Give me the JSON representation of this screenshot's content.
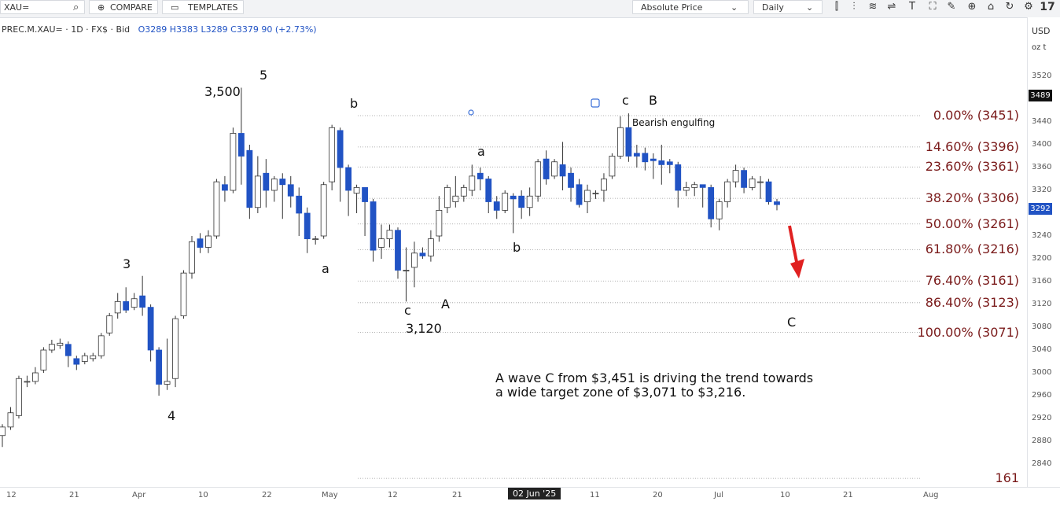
{
  "toolbar": {
    "symbol_input": "XAU=",
    "compare_label": "COMPARE",
    "templates_label": "TEMPLATES",
    "price_mode": "Absolute Price",
    "interval": "Daily",
    "icons": [
      "candles-icon",
      "bars-icon",
      "wave-icon",
      "indicator-icon",
      "text-icon",
      "shape-icon",
      "draw-icon",
      "zoom-icon",
      "undo-icon",
      "settings-icon",
      "tv-logo-icon"
    ]
  },
  "legend": {
    "instrument": "PREC.M.XAU= · 1D · FX$ · Bid",
    "o": "O3289",
    "h": "H3383",
    "l": "L3289",
    "c": "C3379",
    "chg": "90 (+2.73%)"
  },
  "axis": {
    "currency": "USD",
    "unit": "oz t",
    "last_price": "3292",
    "marker_price": "3489"
  },
  "chart_data": {
    "type": "candlestick",
    "ylim": [
      2840,
      3540
    ],
    "yticks": [
      3520,
      3480,
      3440,
      3400,
      3360,
      3320,
      3280,
      3240,
      3200,
      3160,
      3120,
      3080,
      3040,
      3000,
      2960,
      2920,
      2880,
      2840
    ],
    "xticks": [
      "12",
      "21",
      "Apr",
      "10",
      "22",
      "May",
      "12",
      "21",
      "02 Jun '25",
      "11",
      "20",
      "Jul",
      "10",
      "21",
      "Aug"
    ],
    "candles": [
      [
        2890,
        2905,
        2870,
        2910
      ],
      [
        2905,
        2930,
        2900,
        2940
      ],
      [
        2925,
        2990,
        2920,
        2995
      ],
      [
        2985,
        2985,
        2975,
        2995
      ],
      [
        2985,
        3000,
        2980,
        3010
      ],
      [
        3005,
        3040,
        3000,
        3045
      ],
      [
        3040,
        3050,
        3035,
        3058
      ],
      [
        3048,
        3052,
        3042,
        3060
      ],
      [
        3050,
        3030,
        3010,
        3055
      ],
      [
        3025,
        3015,
        3005,
        3030
      ],
      [
        3020,
        3030,
        3015,
        3035
      ],
      [
        3025,
        3030,
        3020,
        3035
      ],
      [
        3030,
        3065,
        3025,
        3070
      ],
      [
        3070,
        3100,
        3065,
        3105
      ],
      [
        3105,
        3125,
        3095,
        3140
      ],
      [
        3125,
        3110,
        3105,
        3150
      ],
      [
        3115,
        3130,
        3110,
        3140
      ],
      [
        3135,
        3115,
        3100,
        3170
      ],
      [
        3115,
        3040,
        3020,
        3120
      ],
      [
        3040,
        2980,
        2960,
        3045
      ],
      [
        2980,
        2985,
        2970,
        3060
      ],
      [
        2990,
        3095,
        2975,
        3100
      ],
      [
        3100,
        3175,
        3095,
        3180
      ],
      [
        3175,
        3230,
        3165,
        3240
      ],
      [
        3235,
        3220,
        3210,
        3245
      ],
      [
        3220,
        3240,
        3210,
        3250
      ],
      [
        3240,
        3335,
        3235,
        3340
      ],
      [
        3330,
        3320,
        3300,
        3345
      ],
      [
        3320,
        3420,
        3315,
        3430
      ],
      [
        3420,
        3380,
        3330,
        3500
      ],
      [
        3390,
        3290,
        3270,
        3400
      ],
      [
        3290,
        3345,
        3280,
        3380
      ],
      [
        3350,
        3320,
        3290,
        3375
      ],
      [
        3320,
        3340,
        3300,
        3345
      ],
      [
        3340,
        3330,
        3270,
        3350
      ],
      [
        3330,
        3310,
        3290,
        3345
      ],
      [
        3310,
        3280,
        3240,
        3325
      ],
      [
        3280,
        3235,
        3210,
        3290
      ],
      [
        3235,
        3235,
        3225,
        3240
      ],
      [
        3240,
        3330,
        3235,
        3335
      ],
      [
        3335,
        3430,
        3320,
        3435
      ],
      [
        3425,
        3360,
        3300,
        3430
      ],
      [
        3360,
        3320,
        3275,
        3365
      ],
      [
        3315,
        3325,
        3280,
        3330
      ],
      [
        3325,
        3300,
        3240,
        3325
      ],
      [
        3300,
        3215,
        3195,
        3305
      ],
      [
        3220,
        3235,
        3200,
        3260
      ],
      [
        3235,
        3250,
        3220,
        3260
      ],
      [
        3250,
        3180,
        3165,
        3255
      ],
      [
        3180,
        3180,
        3125,
        3220
      ],
      [
        3185,
        3210,
        3150,
        3230
      ],
      [
        3210,
        3205,
        3200,
        3220
      ],
      [
        3205,
        3235,
        3195,
        3250
      ],
      [
        3240,
        3285,
        3230,
        3310
      ],
      [
        3290,
        3325,
        3280,
        3330
      ],
      [
        3300,
        3310,
        3290,
        3345
      ],
      [
        3310,
        3325,
        3300,
        3330
      ],
      [
        3320,
        3345,
        3310,
        3365
      ],
      [
        3350,
        3340,
        3320,
        3360
      ],
      [
        3340,
        3300,
        3280,
        3345
      ],
      [
        3300,
        3285,
        3270,
        3310
      ],
      [
        3285,
        3315,
        3280,
        3320
      ],
      [
        3310,
        3305,
        3245,
        3315
      ],
      [
        3310,
        3290,
        3270,
        3320
      ],
      [
        3290,
        3310,
        3275,
        3325
      ],
      [
        3310,
        3370,
        3300,
        3375
      ],
      [
        3375,
        3340,
        3330,
        3390
      ],
      [
        3345,
        3370,
        3340,
        3375
      ],
      [
        3365,
        3345,
        3320,
        3405
      ],
      [
        3350,
        3325,
        3300,
        3360
      ],
      [
        3330,
        3295,
        3290,
        3340
      ],
      [
        3300,
        3320,
        3280,
        3330
      ],
      [
        3315,
        3315,
        3305,
        3320
      ],
      [
        3320,
        3340,
        3300,
        3350
      ],
      [
        3345,
        3380,
        3340,
        3385
      ],
      [
        3380,
        3430,
        3375,
        3450
      ],
      [
        3430,
        3380,
        3370,
        3455
      ],
      [
        3385,
        3380,
        3360,
        3400
      ],
      [
        3385,
        3370,
        3355,
        3395
      ],
      [
        3375,
        3372,
        3340,
        3385
      ],
      [
        3372,
        3365,
        3330,
        3400
      ],
      [
        3370,
        3365,
        3350,
        3375
      ],
      [
        3365,
        3320,
        3290,
        3370
      ],
      [
        3320,
        3325,
        3310,
        3335
      ],
      [
        3325,
        3330,
        3310,
        3335
      ],
      [
        3330,
        3325,
        3290,
        3330
      ],
      [
        3325,
        3270,
        3255,
        3330
      ],
      [
        3270,
        3300,
        3250,
        3305
      ],
      [
        3300,
        3335,
        3290,
        3340
      ],
      [
        3335,
        3355,
        3325,
        3365
      ],
      [
        3355,
        3325,
        3315,
        3360
      ],
      [
        3325,
        3340,
        3320,
        3345
      ],
      [
        3335,
        3335,
        3305,
        3345
      ],
      [
        3335,
        3300,
        3295,
        3340
      ],
      [
        3300,
        3295,
        3285,
        3305
      ]
    ],
    "fib_levels": [
      {
        "label": "0.00% (3451)",
        "value": 3451
      },
      {
        "label": "14.60% (3396)",
        "value": 3396
      },
      {
        "label": "23.60% (3361)",
        "value": 3361
      },
      {
        "label": "38.20% (3306)",
        "value": 3306
      },
      {
        "label": "50.00% (3261)",
        "value": 3261
      },
      {
        "label": "61.80% (3216)",
        "value": 3216
      },
      {
        "label": "76.40% (3161)",
        "value": 3161
      },
      {
        "label": "86.40% (3123)",
        "value": 3123
      },
      {
        "label": "100.00% (3071)",
        "value": 3071
      },
      {
        "label": "161",
        "value": 2815
      }
    ],
    "wave_labels": [
      "5",
      "3,500",
      "3",
      "4",
      "a",
      "b",
      "c",
      "A",
      "3,120",
      "a",
      "b",
      "c",
      "B",
      "C"
    ],
    "annotations": [
      "Bearish engulfing"
    ],
    "note_lines": [
      "A wave C from $3,451 is driving the trend towards",
      "a wide target zone of $3,071 to $3,216."
    ],
    "colors": {
      "bull": "#ffffff",
      "bear": "#2153c4",
      "wick": "#333333",
      "fib_line": "#9a9a9a",
      "fib_text": "#7a1a1a",
      "arrow": "#e02020"
    }
  }
}
